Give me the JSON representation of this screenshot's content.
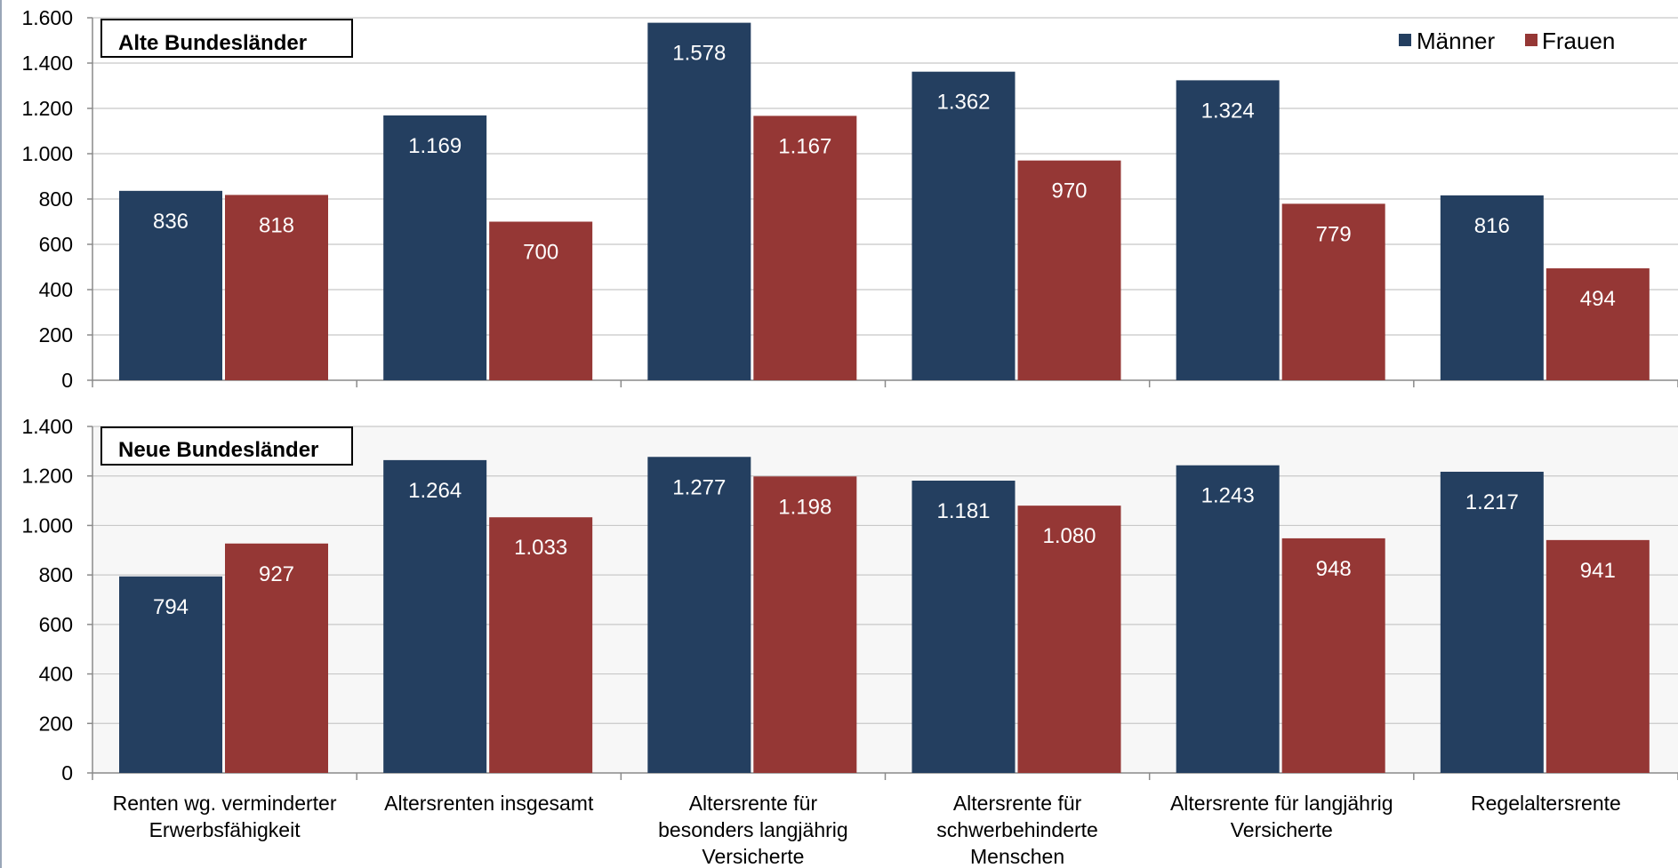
{
  "chart_data": [
    {
      "type": "bar",
      "title": "Alte Bundesländer",
      "categories": [
        [
          "Renten wg. verminderter",
          "Erwerbsfähigkeit"
        ],
        [
          "Altersrenten insgesamt"
        ],
        [
          "Altersrente für",
          "besonders langjährig",
          "Versicherte"
        ],
        [
          "Altersrente für",
          "schwerbehinderte",
          "Menschen"
        ],
        [
          "Altersrente für langjährig",
          "Versicherte"
        ],
        [
          "Regelaltersrente"
        ]
      ],
      "series": [
        {
          "name": "Männer",
          "values": [
            836,
            1169,
            1578,
            1362,
            1324,
            816
          ],
          "labels": [
            "836",
            "1.169",
            "1.578",
            "1.362",
            "1.324",
            "816"
          ]
        },
        {
          "name": "Frauen",
          "values": [
            818,
            700,
            1167,
            970,
            779,
            494
          ],
          "labels": [
            "818",
            "700",
            "1.167",
            "970",
            "779",
            "494"
          ]
        }
      ],
      "ylim": [
        0,
        1600
      ],
      "yticks": [
        0,
        200,
        400,
        600,
        800,
        1000,
        1200,
        1400,
        1600
      ],
      "ytick_labels": [
        "0",
        "200",
        "400",
        "600",
        "800",
        "1.000",
        "1.200",
        "1.400",
        "1.600"
      ],
      "grid": true,
      "legend": "top-right"
    },
    {
      "type": "bar",
      "title": "Neue Bundesländer",
      "categories": [
        [
          "Renten wg. verminderter",
          "Erwerbsfähigkeit"
        ],
        [
          "Altersrenten insgesamt"
        ],
        [
          "Altersrente für",
          "besonders langjährig",
          "Versicherte"
        ],
        [
          "Altersrente für",
          "schwerbehinderte",
          "Menschen"
        ],
        [
          "Altersrente für langjährig",
          "Versicherte"
        ],
        [
          "Regelaltersrente"
        ]
      ],
      "series": [
        {
          "name": "Männer",
          "values": [
            794,
            1264,
            1277,
            1181,
            1243,
            1217
          ],
          "labels": [
            "794",
            "1.264",
            "1.277",
            "1.181",
            "1.243",
            "1.217"
          ]
        },
        {
          "name": "Frauen",
          "values": [
            927,
            1033,
            1198,
            1080,
            948,
            941
          ],
          "labels": [
            "927",
            "1.033",
            "1.198",
            "1.080",
            "948",
            "941"
          ]
        }
      ],
      "ylim": [
        0,
        1400
      ],
      "yticks": [
        0,
        200,
        400,
        600,
        800,
        1000,
        1200,
        1400
      ],
      "ytick_labels": [
        "0",
        "200",
        "400",
        "600",
        "800",
        "1.000",
        "1.200",
        "1.400"
      ],
      "grid": true,
      "legend": "none"
    }
  ],
  "colors": {
    "maenner": "#243f60",
    "frauen": "#953735",
    "grid": "#c8c8c8",
    "axis": "#8a8a8a",
    "panel2_bg": "#f7f7f7"
  }
}
